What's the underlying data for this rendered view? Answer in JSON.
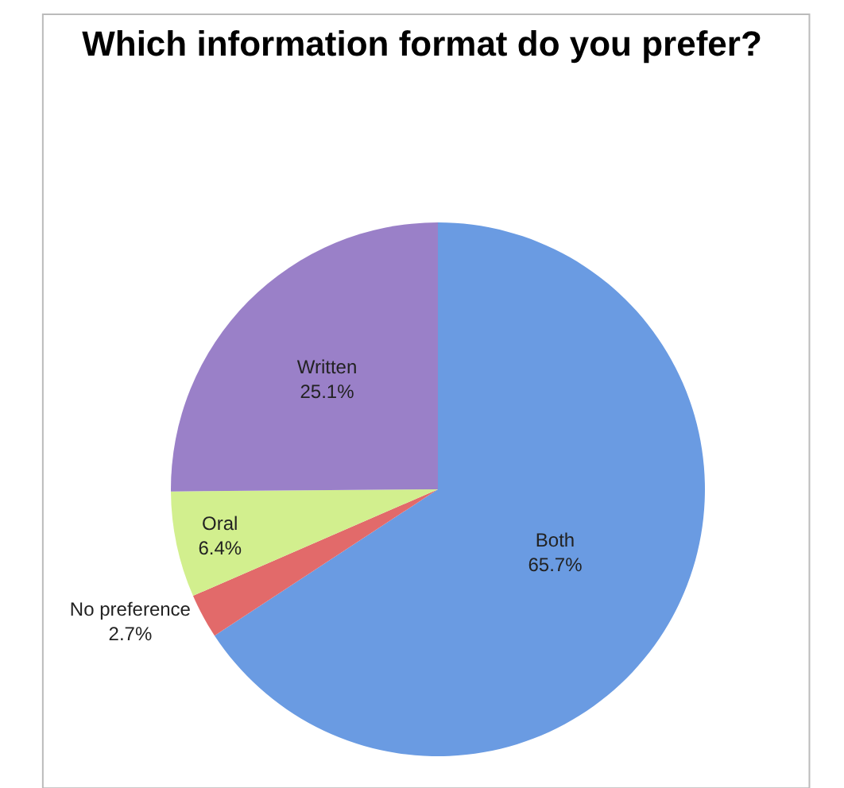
{
  "chart_data": {
    "type": "pie",
    "title": "Which information format do you prefer?",
    "categories": [
      "Both",
      "No preference",
      "Oral",
      "Written"
    ],
    "values": [
      65.7,
      2.7,
      6.4,
      25.1
    ],
    "value_labels": [
      "65.7%",
      "2.7%",
      "6.4%",
      "25.1%"
    ],
    "colors": [
      "#6a9be2",
      "#e26a6a",
      "#d2ef8e",
      "#9a80c8"
    ],
    "legend": false
  }
}
